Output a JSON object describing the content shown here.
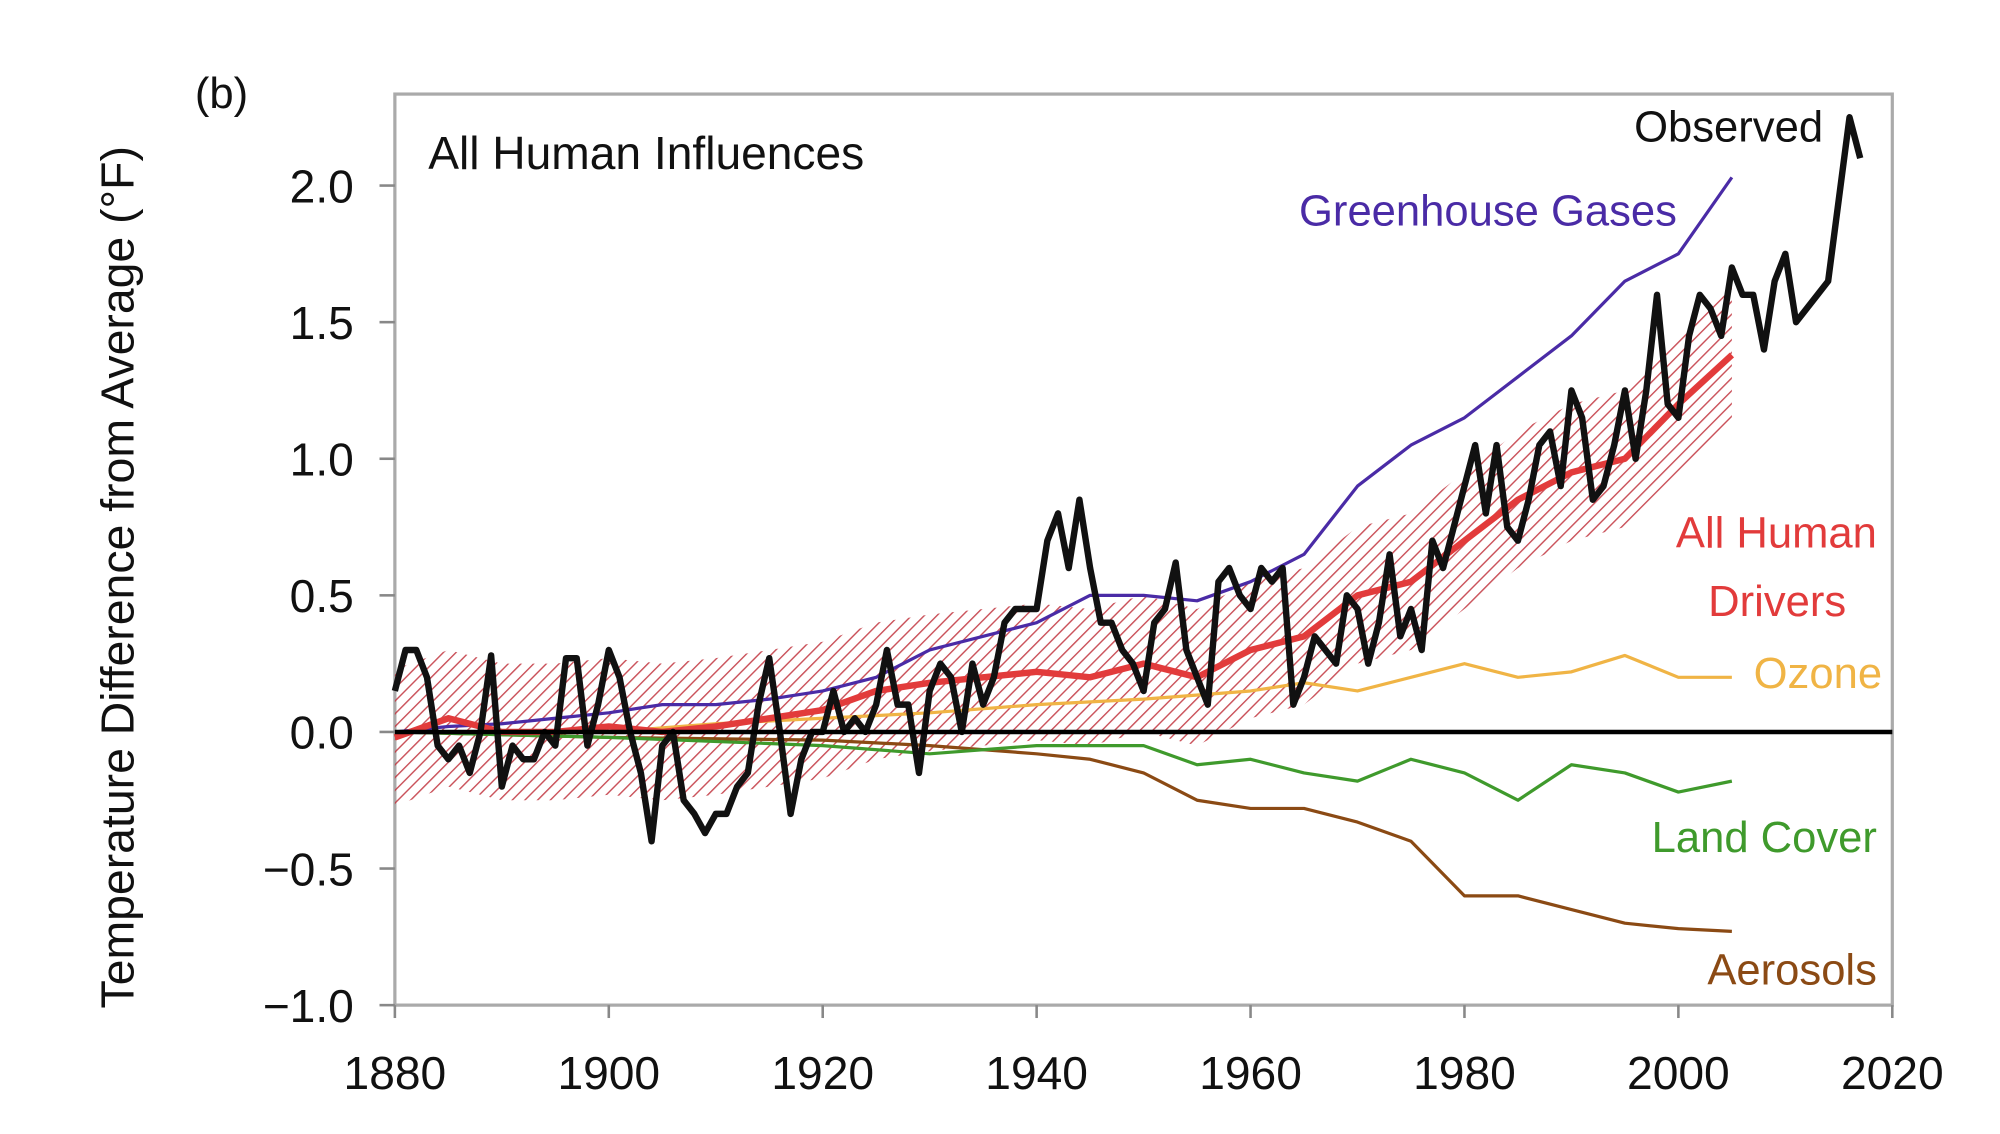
{
  "chart_data": {
    "type": "line",
    "panel_label": "(b)",
    "title": "All Human Influences",
    "xlabel": "",
    "ylabel": "Temperature Difference from Average (°F)",
    "xlim": [
      1880,
      2020
    ],
    "ylim": [
      -1.0,
      2.3
    ],
    "xticks": [
      1880,
      1900,
      1920,
      1940,
      1960,
      1980,
      2000,
      2020
    ],
    "yticks": [
      -1.0,
      -0.5,
      0.0,
      0.5,
      1.0,
      1.5,
      2.0
    ],
    "ytick_labels": [
      "−1.0",
      "−0.5",
      "0.0",
      "0.5",
      "1.0",
      "1.5",
      "2.0"
    ],
    "grid": false,
    "zero_line": true,
    "series": [
      {
        "name": "Greenhouse Gases",
        "color": "#4a2ba6",
        "x": [
          1880,
          1885,
          1890,
          1895,
          1900,
          1905,
          1910,
          1915,
          1920,
          1925,
          1930,
          1935,
          1940,
          1945,
          1950,
          1955,
          1960,
          1965,
          1970,
          1975,
          1980,
          1985,
          1990,
          1995,
          2000,
          2005
        ],
        "y": [
          0,
          0.02,
          0.03,
          0.05,
          0.07,
          0.1,
          0.1,
          0.12,
          0.15,
          0.2,
          0.3,
          0.35,
          0.4,
          0.5,
          0.5,
          0.48,
          0.55,
          0.65,
          0.9,
          1.05,
          1.15,
          1.3,
          1.45,
          1.65,
          1.75,
          2.03
        ]
      },
      {
        "name": "Ozone",
        "color": "#f0b445",
        "x": [
          1880,
          1890,
          1900,
          1910,
          1920,
          1930,
          1940,
          1950,
          1960,
          1965,
          1970,
          1975,
          1980,
          1985,
          1990,
          1995,
          2000,
          2005
        ],
        "y": [
          0,
          0,
          0,
          0.03,
          0.05,
          0.07,
          0.1,
          0.12,
          0.15,
          0.18,
          0.15,
          0.2,
          0.25,
          0.2,
          0.22,
          0.28,
          0.2,
          0.2
        ]
      },
      {
        "name": "Land Cover",
        "color": "#3f9a2c",
        "x": [
          1880,
          1900,
          1920,
          1930,
          1940,
          1950,
          1955,
          1960,
          1965,
          1970,
          1975,
          1980,
          1985,
          1990,
          1995,
          2000,
          2005
        ],
        "y": [
          0,
          -0.02,
          -0.05,
          -0.08,
          -0.05,
          -0.05,
          -0.12,
          -0.1,
          -0.15,
          -0.18,
          -0.1,
          -0.15,
          -0.25,
          -0.12,
          -0.15,
          -0.22,
          -0.18
        ]
      },
      {
        "name": "Aerosols",
        "color": "#8b4a14",
        "x": [
          1880,
          1900,
          1920,
          1930,
          1940,
          1945,
          1950,
          1955,
          1960,
          1965,
          1970,
          1975,
          1980,
          1985,
          1990,
          1995,
          2000,
          2005
        ],
        "y": [
          0,
          -0.02,
          -0.03,
          -0.05,
          -0.08,
          -0.1,
          -0.15,
          -0.25,
          -0.28,
          -0.28,
          -0.33,
          -0.4,
          -0.6,
          -0.6,
          -0.65,
          -0.7,
          -0.72,
          -0.73
        ]
      },
      {
        "name": "All Human Drivers",
        "color": "#e23b3b",
        "band": 0.25,
        "x": [
          1880,
          1885,
          1890,
          1895,
          1900,
          1905,
          1910,
          1915,
          1920,
          1925,
          1930,
          1935,
          1940,
          1945,
          1950,
          1955,
          1960,
          1965,
          1970,
          1975,
          1980,
          1985,
          1990,
          1995,
          2000,
          2005
        ],
        "y": [
          -0.02,
          0.05,
          0,
          0,
          0.02,
          0,
          0.02,
          0.05,
          0.08,
          0.15,
          0.18,
          0.2,
          0.22,
          0.2,
          0.25,
          0.2,
          0.3,
          0.35,
          0.5,
          0.55,
          0.7,
          0.85,
          0.95,
          1.0,
          1.2,
          1.38
        ]
      },
      {
        "name": "Observed",
        "color": "#111111",
        "x_start": 1880,
        "y": [
          0.15,
          0.3,
          0.3,
          0.2,
          -0.05,
          -0.1,
          -0.05,
          -0.15,
          0,
          0.28,
          -0.2,
          -0.05,
          -0.1,
          -0.1,
          0,
          -0.05,
          0.27,
          0.27,
          -0.05,
          0.1,
          0.3,
          0.2,
          0,
          -0.15,
          -0.4,
          -0.05,
          0,
          -0.25,
          -0.3,
          -0.37,
          -0.3,
          -0.3,
          -0.2,
          -0.15,
          0.1,
          0.27,
          0,
          -0.3,
          -0.1,
          0,
          0,
          0.15,
          0,
          0.05,
          0,
          0.1,
          0.3,
          0.1,
          0.1,
          -0.15,
          0.15,
          0.25,
          0.2,
          0,
          0.25,
          0.1,
          0.2,
          0.4,
          0.45,
          0.45,
          0.45,
          0.7,
          0.8,
          0.6,
          0.85,
          0.6,
          0.4,
          0.4,
          0.3,
          0.25,
          0.15,
          0.4,
          0.45,
          0.62,
          0.3,
          0.2,
          0.1,
          0.55,
          0.6,
          0.5,
          0.45,
          0.6,
          0.55,
          0.6,
          0.1,
          0.2,
          0.35,
          0.3,
          0.25,
          0.5,
          0.45,
          0.25,
          0.4,
          0.65,
          0.35,
          0.45,
          0.3,
          0.7,
          0.6,
          0.75,
          0.9,
          1.05,
          0.8,
          1.05,
          0.75,
          0.7,
          0.85,
          1.05,
          1.1,
          0.9,
          1.25,
          1.15,
          0.85,
          0.9,
          1.05,
          1.25,
          1.0,
          1.25,
          1.6,
          1.2,
          1.15,
          1.45,
          1.6,
          1.55,
          1.45,
          1.7,
          1.6,
          1.6,
          1.4,
          1.65,
          1.75,
          1.5,
          1.55,
          1.6,
          1.65,
          1.95,
          2.25,
          2.1
        ]
      }
    ],
    "annotations": [
      {
        "text": "Observed",
        "color": "#111111"
      },
      {
        "text": "Greenhouse Gases",
        "color": "#4a2ba6"
      },
      {
        "text": "All Human",
        "color": "#e23b3b"
      },
      {
        "text": "Drivers",
        "color": "#e23b3b"
      },
      {
        "text": "Ozone",
        "color": "#f0b445"
      },
      {
        "text": "Land Cover",
        "color": "#3f9a2c"
      },
      {
        "text": "Aerosols",
        "color": "#8b4a14"
      }
    ]
  }
}
